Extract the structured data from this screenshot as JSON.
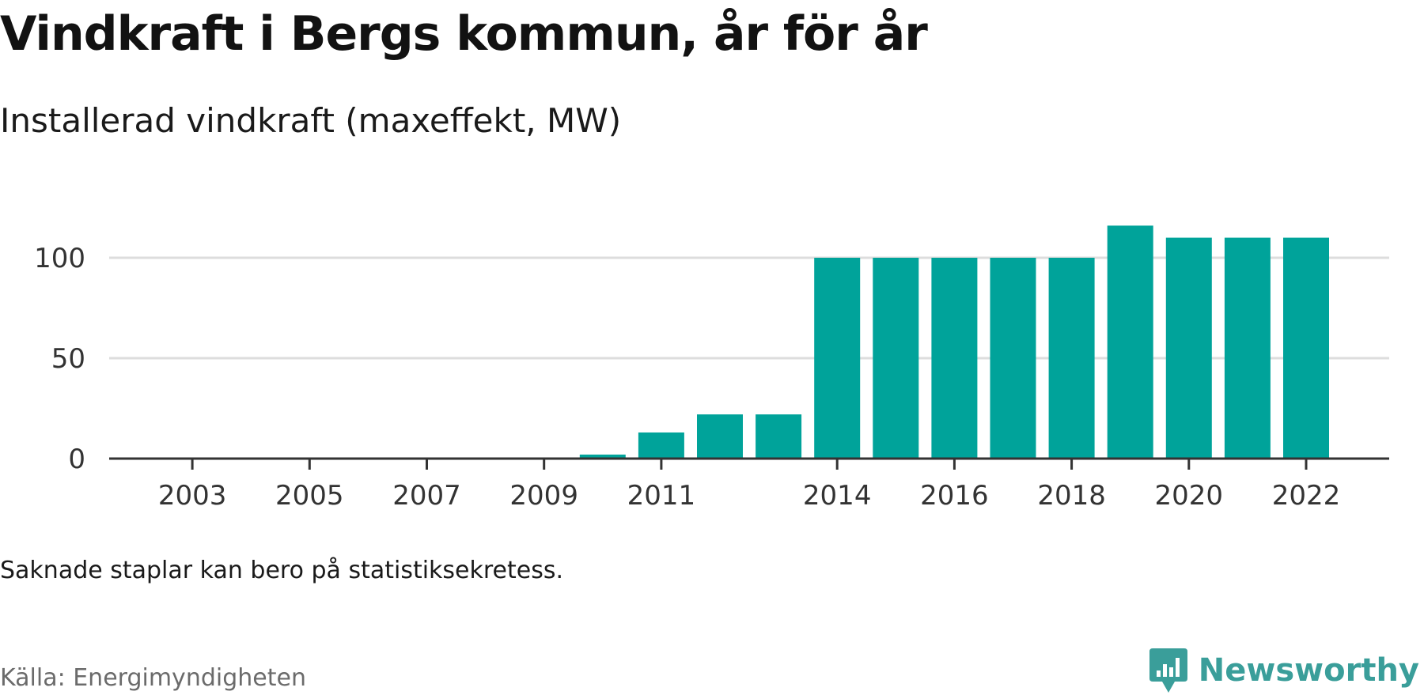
{
  "header": {
    "title": "Vindkraft i Bergs kommun, år för år",
    "subtitle": "Installerad vindkraft (maxeffekt, MW)"
  },
  "footer": {
    "note": "Saknade staplar kan bero på statistiksekretess.",
    "source": "Källa: Energimyndigheten",
    "brand": "Newsworthy",
    "brand_icon": "newsworthy-logo-icon"
  },
  "colors": {
    "bar": "#00a39a",
    "grid": "#dddddd",
    "axis": "#333333",
    "tick_text": "#333333",
    "brand": "#3a9e9a"
  },
  "chart_data": {
    "type": "bar",
    "title": "Vindkraft i Bergs kommun, år för år",
    "subtitle": "Installerad vindkraft (maxeffekt, MW)",
    "xlabel": "",
    "ylabel": "",
    "categories": [
      "2002",
      "2003",
      "2004",
      "2005",
      "2006",
      "2007",
      "2008",
      "2009",
      "2010",
      "2011",
      "2012",
      "2013",
      "2014",
      "2015",
      "2016",
      "2017",
      "2018",
      "2019",
      "2020",
      "2021",
      "2022"
    ],
    "values": [
      0,
      0,
      0,
      0,
      0,
      0,
      0,
      0,
      2,
      13,
      22,
      22,
      100,
      100,
      100,
      100,
      100,
      116,
      110,
      110,
      110
    ],
    "x_tick_labels": [
      "2003",
      "2005",
      "2007",
      "2009",
      "2011",
      "2014",
      "2016",
      "2018",
      "2020",
      "2022"
    ],
    "y_ticks": [
      0,
      50,
      100
    ],
    "ylim": [
      0,
      125
    ],
    "grid": "horizontal",
    "legend": "none"
  }
}
